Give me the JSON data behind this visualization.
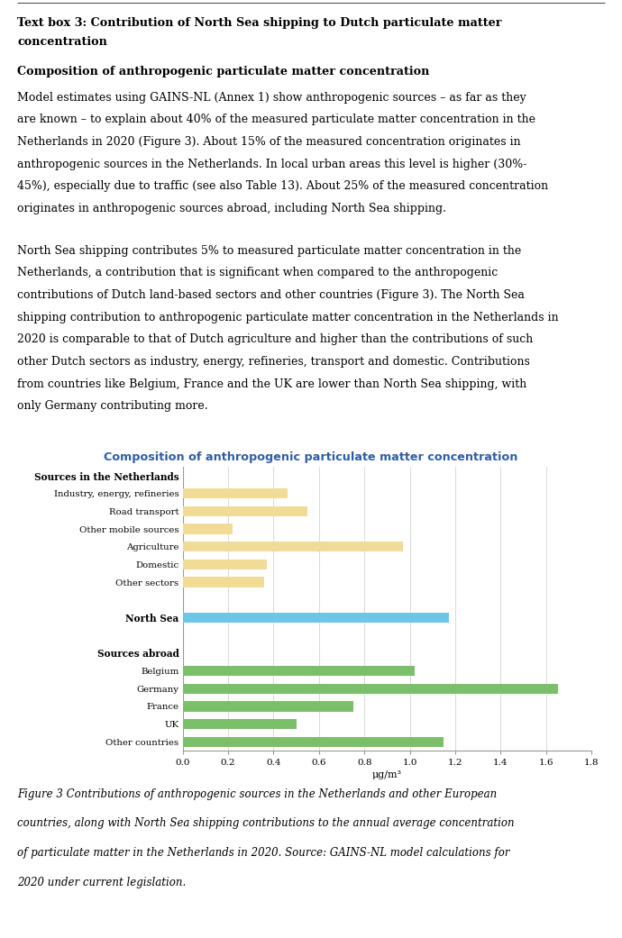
{
  "title": "Composition of anthropogenic particulate matter concentration",
  "title_color": "#2E5FA3",
  "categories": [
    "Sources in the Netherlands",
    "Industry, energy, refineries",
    "Road transport",
    "Other mobile sources",
    "Agriculture",
    "Domestic",
    "Other sectors",
    " ",
    "North Sea",
    " ",
    "Sources abroad",
    "Belgium",
    "Germany",
    "France",
    "UK",
    "Other countries"
  ],
  "values": [
    null,
    0.46,
    0.55,
    0.22,
    0.97,
    0.37,
    0.36,
    null,
    1.17,
    null,
    null,
    1.02,
    1.65,
    0.75,
    0.5,
    1.15
  ],
  "colors": [
    null,
    "#F0DC96",
    "#F0DC96",
    "#F0DC96",
    "#F0DC96",
    "#F0DC96",
    "#F0DC96",
    null,
    "#6EC6E6",
    null,
    null,
    "#7BBF6A",
    "#7BBF6A",
    "#7BBF6A",
    "#7BBF6A",
    "#7BBF6A"
  ],
  "xlim": [
    0.0,
    1.8
  ],
  "xticks": [
    0.0,
    0.2,
    0.4,
    0.6,
    0.8,
    1.0,
    1.2,
    1.4,
    1.6,
    1.8
  ],
  "xlabel": "μg/m³",
  "bg_color": "#E3E3E3",
  "plot_bg_color": "#FFFFFF",
  "text_box_title_bold": "Text box 3: Contribution of North Sea shipping to Dutch particulate matter\nconcentration",
  "section_heading": "Composition of anthropogenic particulate matter concentration",
  "para1_lines": [
    "Model estimates using GAINS-NL (Annex 1) show anthropogenic sources – as far as they",
    "are known – to explain about 40% of the measured particulate matter concentration in the",
    "Netherlands in 2020 (Figure 3). About 15% of the measured concentration originates in",
    "anthropogenic sources in the Netherlands. In local urban areas this level is higher (30%-",
    "45%), especially due to traffic (see also Table 13). About 25% of the measured concentration",
    "originates in anthropogenic sources abroad, including North Sea shipping."
  ],
  "para2_lines": [
    "North Sea shipping contributes 5% to measured particulate matter concentration in the",
    "Netherlands, a contribution that is significant when compared to the anthropogenic",
    "contributions of Dutch land-based sectors and other countries (Figure 3). The North Sea",
    "shipping contribution to anthropogenic particulate matter concentration in the Netherlands in",
    "2020 is comparable to that of Dutch agriculture and higher than the contributions of such",
    "other Dutch sectors as industry, energy, refineries, transport and domestic. Contributions",
    "from countries like Belgium, France and the UK are lower than North Sea shipping, with",
    "only Germany contributing more."
  ],
  "caption_lines": [
    "Figure 3 Contributions of anthropogenic sources in the Netherlands and other European",
    "countries, along with North Sea shipping contributions to the annual average concentration",
    "of particulate matter in the Netherlands in 2020. Source: GAINS-NL model calculations for",
    "2020 under current legislation."
  ],
  "header_labels": [
    "Sources in the Netherlands",
    "Sources abroad"
  ],
  "bold_labels": [
    "North Sea",
    "Sources in the Netherlands",
    "Sources abroad"
  ]
}
